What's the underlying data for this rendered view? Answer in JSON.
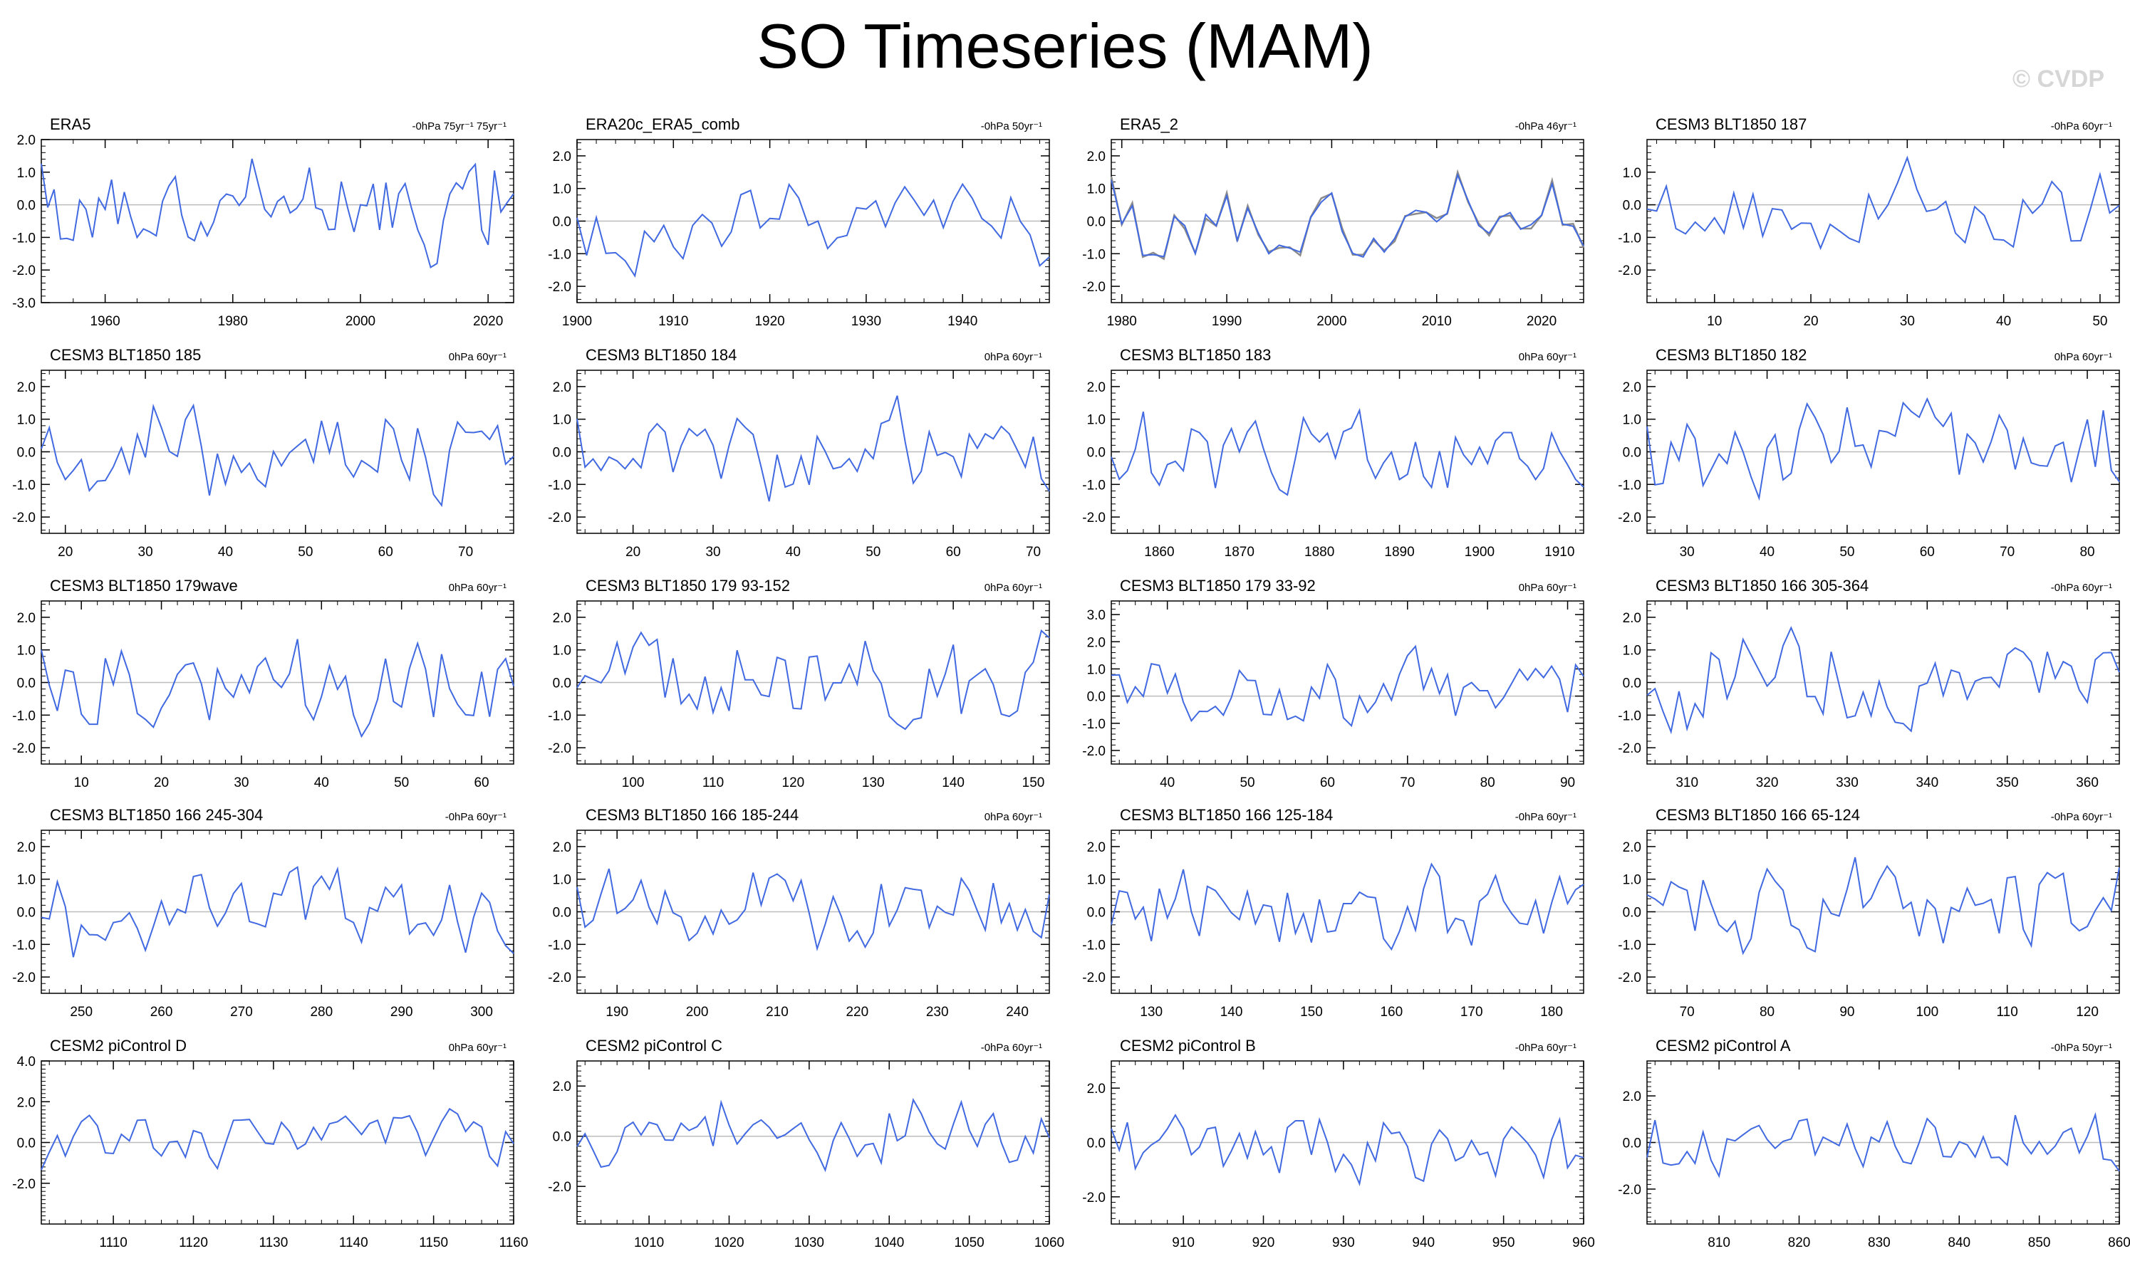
{
  "title": "SO Timeseries (MAM)",
  "watermark": "© CVDP",
  "colors": {
    "series": "#4169E1",
    "series2": "#8c8c8c",
    "axis": "#000000",
    "zero": "#bdbdbd"
  },
  "chart_data": [
    {
      "type": "line",
      "title": "ERA5",
      "note": "-0hPa 75yr⁻¹ 75yr⁻¹",
      "ylim": [
        -3,
        2
      ],
      "yticks": [
        2,
        1,
        0,
        -1,
        -2,
        -3
      ],
      "xlim": [
        1950,
        2024
      ],
      "xticks": [
        1960,
        1980,
        2000,
        2020
      ],
      "seed": 11
    },
    {
      "type": "line",
      "title": "ERA20c_ERA5_comb",
      "note": "-0hPa 50yr⁻¹",
      "ylim": [
        -2.5,
        2.5
      ],
      "yticks": [
        2,
        1,
        0,
        -1,
        -2
      ],
      "xlim": [
        1900,
        1949
      ],
      "xticks": [
        1900,
        1910,
        1920,
        1930,
        1940
      ],
      "seed": 12
    },
    {
      "type": "line",
      "title": "ERA5_2",
      "note": "-0hPa 46yr⁻¹",
      "ylim": [
        -2.5,
        2.5
      ],
      "yticks": [
        2,
        1,
        0,
        -1,
        -2
      ],
      "xlim": [
        1979,
        2024
      ],
      "xticks": [
        1980,
        1990,
        2000,
        2010,
        2020
      ],
      "seed": 11,
      "overlay": true
    },
    {
      "type": "line",
      "title": "CESM3 BLT1850 187",
      "note": "-0hPa 60yr⁻¹",
      "ylim": [
        -3,
        2
      ],
      "yticks": [
        1,
        0,
        -1,
        -2
      ],
      "xlim": [
        3,
        52
      ],
      "xticks": [
        10,
        20,
        30,
        40,
        50
      ],
      "seed": 14
    },
    {
      "type": "line",
      "title": "CESM3 BLT1850 185",
      "note": "0hPa 60yr⁻¹",
      "ylim": [
        -2.5,
        2.5
      ],
      "yticks": [
        2,
        1,
        0,
        -1,
        -2
      ],
      "xlim": [
        17,
        76
      ],
      "xticks": [
        20,
        30,
        40,
        50,
        60,
        70
      ],
      "seed": 21
    },
    {
      "type": "line",
      "title": "CESM3 BLT1850 184",
      "note": "0hPa 60yr⁻¹",
      "ylim": [
        -2.5,
        2.5
      ],
      "yticks": [
        2,
        1,
        0,
        -1,
        -2
      ],
      "xlim": [
        13,
        72
      ],
      "xticks": [
        20,
        30,
        40,
        50,
        60,
        70
      ],
      "seed": 22
    },
    {
      "type": "line",
      "title": "CESM3 BLT1850 183",
      "note": "0hPa 60yr⁻¹",
      "ylim": [
        -2.5,
        2.5
      ],
      "yticks": [
        2,
        1,
        0,
        -1,
        -2
      ],
      "xlim": [
        1854,
        1913
      ],
      "xticks": [
        1860,
        1870,
        1880,
        1890,
        1900,
        1910
      ],
      "seed": 23
    },
    {
      "type": "line",
      "title": "CESM3 BLT1850 182",
      "note": "0hPa 60yr⁻¹",
      "ylim": [
        -2.5,
        2.5
      ],
      "yticks": [
        2,
        1,
        0,
        -1,
        -2
      ],
      "xlim": [
        25,
        84
      ],
      "xticks": [
        30,
        40,
        50,
        60,
        70,
        80
      ],
      "seed": 24
    },
    {
      "type": "line",
      "title": "CESM3 BLT1850 179wave",
      "note": "0hPa 60yr⁻¹",
      "ylim": [
        -2.5,
        2.5
      ],
      "yticks": [
        2,
        1,
        0,
        -1,
        -2
      ],
      "xlim": [
        5,
        64
      ],
      "xticks": [
        10,
        20,
        30,
        40,
        50,
        60
      ],
      "seed": 31
    },
    {
      "type": "line",
      "title": "CESM3 BLT1850 179 93-152",
      "note": "0hPa 60yr⁻¹",
      "ylim": [
        -2.5,
        2.5
      ],
      "yticks": [
        2,
        1,
        0,
        -1,
        -2
      ],
      "xlim": [
        93,
        152
      ],
      "xticks": [
        100,
        110,
        120,
        130,
        140,
        150
      ],
      "seed": 32
    },
    {
      "type": "line",
      "title": "CESM3 BLT1850 179 33-92",
      "note": "0hPa 60yr⁻¹",
      "ylim": [
        -2.5,
        3.5
      ],
      "yticks": [
        3,
        2,
        1,
        0,
        -1,
        -2
      ],
      "xlim": [
        33,
        92
      ],
      "xticks": [
        40,
        50,
        60,
        70,
        80,
        90
      ],
      "seed": 33
    },
    {
      "type": "line",
      "title": "CESM3 BLT1850 166 305-364",
      "note": "-0hPa 60yr⁻¹",
      "ylim": [
        -2.5,
        2.5
      ],
      "yticks": [
        2,
        1,
        0,
        -1,
        -2
      ],
      "xlim": [
        305,
        364
      ],
      "xticks": [
        310,
        320,
        330,
        340,
        350,
        360
      ],
      "seed": 34
    },
    {
      "type": "line",
      "title": "CESM3 BLT1850 166 245-304",
      "note": "-0hPa 60yr⁻¹",
      "ylim": [
        -2.5,
        2.5
      ],
      "yticks": [
        2,
        1,
        0,
        -1,
        -2
      ],
      "xlim": [
        245,
        304
      ],
      "xticks": [
        250,
        260,
        270,
        280,
        290,
        300
      ],
      "seed": 41
    },
    {
      "type": "line",
      "title": "CESM3 BLT1850 166 185-244",
      "note": "0hPa 60yr⁻¹",
      "ylim": [
        -2.5,
        2.5
      ],
      "yticks": [
        2,
        1,
        0,
        -1,
        -2
      ],
      "xlim": [
        185,
        244
      ],
      "xticks": [
        190,
        200,
        210,
        220,
        230,
        240
      ],
      "seed": 42
    },
    {
      "type": "line",
      "title": "CESM3 BLT1850 166 125-184",
      "note": "-0hPa 60yr⁻¹",
      "ylim": [
        -2.5,
        2.5
      ],
      "yticks": [
        2,
        1,
        0,
        -1,
        -2
      ],
      "xlim": [
        125,
        184
      ],
      "xticks": [
        130,
        140,
        150,
        160,
        170,
        180
      ],
      "seed": 43
    },
    {
      "type": "line",
      "title": "CESM3 BLT1850 166 65-124",
      "note": "-0hPa 60yr⁻¹",
      "ylim": [
        -2.5,
        2.5
      ],
      "yticks": [
        2,
        1,
        0,
        -1,
        -2
      ],
      "xlim": [
        65,
        124
      ],
      "xticks": [
        70,
        80,
        90,
        100,
        110,
        120
      ],
      "seed": 44
    },
    {
      "type": "line",
      "title": "CESM2 piControl D",
      "note": "0hPa 60yr⁻¹",
      "ylim": [
        -4,
        4
      ],
      "yticks": [
        4,
        2,
        0,
        -2
      ],
      "xlim": [
        1101,
        1160
      ],
      "xticks": [
        1110,
        1120,
        1130,
        1140,
        1150,
        1160
      ],
      "seed": 51
    },
    {
      "type": "line",
      "title": "CESM2 piControl C",
      "note": "-0hPa 60yr⁻¹",
      "ylim": [
        -3.5,
        3
      ],
      "yticks": [
        2,
        0,
        -2
      ],
      "xlim": [
        1001,
        1060
      ],
      "xticks": [
        1010,
        1020,
        1030,
        1040,
        1050,
        1060
      ],
      "seed": 52
    },
    {
      "type": "line",
      "title": "CESM2 piControl B",
      "note": "-0hPa 60yr⁻¹",
      "ylim": [
        -3,
        3
      ],
      "yticks": [
        2,
        0,
        -2
      ],
      "xlim": [
        901,
        960
      ],
      "xticks": [
        910,
        920,
        930,
        940,
        950,
        960
      ],
      "seed": 53
    },
    {
      "type": "line",
      "title": "CESM2 piControl A",
      "note": "-0hPa 50yr⁻¹",
      "ylim": [
        -3.5,
        3.5
      ],
      "yticks": [
        2,
        0,
        -2
      ],
      "xlim": [
        801,
        860
      ],
      "xticks": [
        810,
        820,
        830,
        840,
        850,
        860
      ],
      "seed": 54
    }
  ]
}
